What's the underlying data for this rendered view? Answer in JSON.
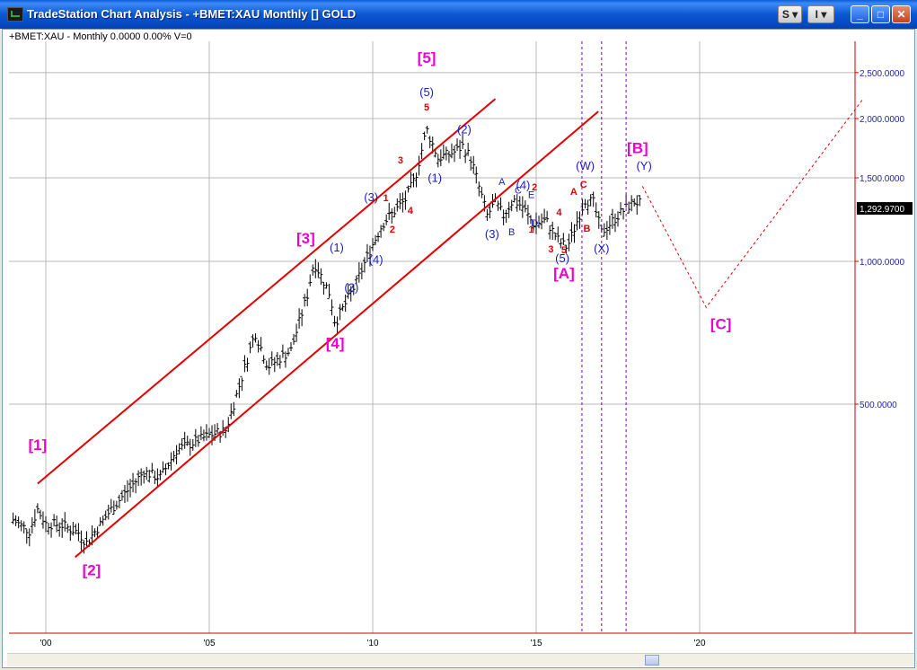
{
  "window": {
    "title": "TradeStation Chart Analysis - +BMET:XAU Monthly [] GOLD",
    "menu_s": "S",
    "menu_i": "I",
    "minimize_label": "_",
    "maximize_label": "□",
    "close_label": "✕"
  },
  "chart_header": "+BMET:XAU - Monthly  0.0000  0.00%  V=0",
  "colors": {
    "bars": "#000000",
    "channel": "#e00000",
    "projection": "#e00000",
    "time_lines": "#7a00cc",
    "major_labels": "#ee00cc",
    "minor_labels": "#1a1acc",
    "wave_numbers": "#dd0000"
  },
  "chart_data": {
    "type": "ohlc",
    "instrument": "+BMET:XAU",
    "interval": "Monthly",
    "y_scale": "log",
    "ylim": [
      300,
      2900
    ],
    "y_ticks": [
      {
        "value": 500,
        "label": "500.0000"
      },
      {
        "value": 1000,
        "label": "1,000.0000"
      },
      {
        "value": 1500,
        "label": "1,500.0000"
      },
      {
        "value": 2000,
        "label": "2,000.0000"
      },
      {
        "value": 2500,
        "label": "2,500.0000"
      }
    ],
    "x_ticks": [
      {
        "year": 2000,
        "label": "'00"
      },
      {
        "year": 2005,
        "label": "'05"
      },
      {
        "year": 2010,
        "label": "'10"
      },
      {
        "year": 2015,
        "label": "'15"
      },
      {
        "year": 2020,
        "label": "'20"
      }
    ],
    "last_value": "1,292.9700",
    "price_path": [
      [
        1999.0,
        285
      ],
      [
        1999.5,
        270
      ],
      [
        1999.75,
        300
      ],
      [
        2000.0,
        280
      ],
      [
        2000.5,
        278
      ],
      [
        2001.0,
        268
      ],
      [
        2001.25,
        255
      ],
      [
        2002.0,
        300
      ],
      [
        2003.0,
        360
      ],
      [
        2003.5,
        350
      ],
      [
        2004.0,
        400
      ],
      [
        2005.0,
        430
      ],
      [
        2005.5,
        440
      ],
      [
        2006.0,
        570
      ],
      [
        2006.4,
        710
      ],
      [
        2006.8,
        600
      ],
      [
        2007.5,
        650
      ],
      [
        2008.0,
        850
      ],
      [
        2008.2,
        1000
      ],
      [
        2008.7,
        850
      ],
      [
        2008.85,
        740
      ],
      [
        2009.5,
        900
      ],
      [
        2009.9,
        1050
      ],
      [
        2010.3,
        1200
      ],
      [
        2011.0,
        1350
      ],
      [
        2011.3,
        1500
      ],
      [
        2011.65,
        1900
      ],
      [
        2012.0,
        1650
      ],
      [
        2012.5,
        1700
      ],
      [
        2012.75,
        1750
      ],
      [
        2013.0,
        1650
      ],
      [
        2013.5,
        1250
      ],
      [
        2013.75,
        1330
      ],
      [
        2014.0,
        1250
      ],
      [
        2014.3,
        1350
      ],
      [
        2014.6,
        1300
      ],
      [
        2014.9,
        1200
      ],
      [
        2015.3,
        1220
      ],
      [
        2015.7,
        1100
      ],
      [
        2015.95,
        1070
      ],
      [
        2016.5,
        1350
      ],
      [
        2016.75,
        1330
      ],
      [
        2017.0,
        1150
      ],
      [
        2017.5,
        1250
      ],
      [
        2018.0,
        1340
      ],
      [
        2018.2,
        1320
      ]
    ],
    "channels": [
      {
        "from": [
          1999.75,
          340
        ],
        "to": [
          2013.75,
          2200
        ]
      },
      {
        "from": [
          2000.9,
          238
        ],
        "to": [
          2016.9,
          2070
        ]
      }
    ],
    "projection": [
      [
        2018.25,
        1440
      ],
      [
        2020.2,
        800
      ],
      [
        2025.0,
        2200
      ]
    ],
    "time_cycle_years": [
      2016.4,
      2017.0,
      2017.75
    ],
    "wave_labels": [
      {
        "text": "[1]",
        "x": 1999.75,
        "y": 400,
        "style": "major"
      },
      {
        "text": "[2]",
        "x": 2001.4,
        "y": 218,
        "style": "major"
      },
      {
        "text": "[3]",
        "x": 2007.95,
        "y": 1090,
        "style": "major"
      },
      {
        "text": "[4]",
        "x": 2008.85,
        "y": 655,
        "style": "major"
      },
      {
        "text": "[5]",
        "x": 2011.65,
        "y": 2620,
        "style": "major"
      },
      {
        "text": "[A]",
        "x": 2015.85,
        "y": 920,
        "style": "major"
      },
      {
        "text": "[B]",
        "x": 2018.1,
        "y": 1690,
        "style": "major"
      },
      {
        "text": "[C]",
        "x": 2020.65,
        "y": 720,
        "style": "major"
      },
      {
        "text": "(1)",
        "x": 2008.9,
        "y": 1050,
        "style": "minor"
      },
      {
        "text": "(2)",
        "x": 2009.35,
        "y": 865,
        "style": "minor"
      },
      {
        "text": "(3)",
        "x": 2009.95,
        "y": 1340,
        "style": "minor"
      },
      {
        "text": "(4)",
        "x": 2010.1,
        "y": 990,
        "style": "minor"
      },
      {
        "text": "(5)",
        "x": 2011.65,
        "y": 2230,
        "style": "minor"
      },
      {
        "text": "(1)",
        "x": 2011.9,
        "y": 1470,
        "style": "minor"
      },
      {
        "text": "(2)",
        "x": 2012.8,
        "y": 1860,
        "style": "minor"
      },
      {
        "text": "(3)",
        "x": 2013.65,
        "y": 1120,
        "style": "minor"
      },
      {
        "text": "(4)",
        "x": 2014.6,
        "y": 1420,
        "style": "minor"
      },
      {
        "text": "(5)",
        "x": 2015.8,
        "y": 995,
        "style": "minor"
      },
      {
        "text": "(W)",
        "x": 2016.5,
        "y": 1560,
        "style": "minor"
      },
      {
        "text": "(X)",
        "x": 2017.0,
        "y": 1045,
        "style": "minor"
      },
      {
        "text": "(Y)",
        "x": 2018.3,
        "y": 1560,
        "style": "minor"
      },
      {
        "text": "A",
        "x": 2013.95,
        "y": 1450,
        "style": "minor-letter"
      },
      {
        "text": "B",
        "x": 2014.25,
        "y": 1135,
        "style": "minor-letter"
      },
      {
        "text": "C",
        "x": 2014.45,
        "y": 1390,
        "style": "minor-letter"
      },
      {
        "text": "D",
        "x": 2014.95,
        "y": 1185,
        "style": "minor-letter"
      },
      {
        "text": "E",
        "x": 2014.85,
        "y": 1360,
        "style": "minor-letter"
      },
      {
        "text": "1",
        "x": 2010.4,
        "y": 1340,
        "style": "wave"
      },
      {
        "text": "2",
        "x": 2010.6,
        "y": 1150,
        "style": "wave"
      },
      {
        "text": "3",
        "x": 2010.85,
        "y": 1610,
        "style": "wave"
      },
      {
        "text": "4",
        "x": 2011.15,
        "y": 1260,
        "style": "wave"
      },
      {
        "text": "5",
        "x": 2011.65,
        "y": 2080,
        "style": "wave"
      },
      {
        "text": "1",
        "x": 2014.85,
        "y": 1150,
        "style": "wave"
      },
      {
        "text": "2",
        "x": 2014.95,
        "y": 1410,
        "style": "wave"
      },
      {
        "text": "3",
        "x": 2015.45,
        "y": 1045,
        "style": "wave"
      },
      {
        "text": "4",
        "x": 2015.7,
        "y": 1250,
        "style": "wave"
      },
      {
        "text": "5",
        "x": 2015.85,
        "y": 1040,
        "style": "wave"
      },
      {
        "text": "A",
        "x": 2016.15,
        "y": 1380,
        "style": "wave"
      },
      {
        "text": "B",
        "x": 2016.55,
        "y": 1155,
        "style": "wave"
      },
      {
        "text": "C",
        "x": 2016.45,
        "y": 1430,
        "style": "wave"
      }
    ]
  }
}
